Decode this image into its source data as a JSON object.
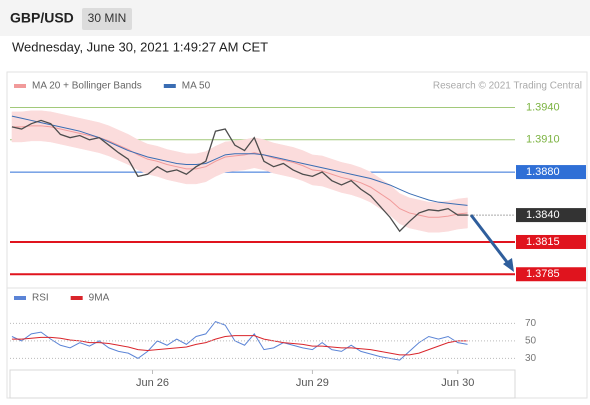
{
  "header": {
    "symbol": "GBP/USD",
    "timeframe": "30 MIN",
    "datetime": "Wednesday, June 30, 2021 1:49:27 AM CET"
  },
  "chart_data": [
    {
      "type": "line",
      "source": "Research © 2021 Trading Central",
      "x": [
        0,
        1,
        2,
        3,
        4,
        5,
        6,
        7,
        8,
        9,
        10,
        11,
        12,
        13,
        14,
        15,
        16,
        17,
        18,
        19,
        20,
        21,
        22,
        23,
        24,
        25,
        26,
        27,
        28,
        29,
        30,
        31,
        32,
        33,
        34,
        35,
        36,
        37,
        38,
        39,
        40,
        41,
        42,
        43,
        44,
        45,
        46,
        47
      ],
      "xlim": [
        -0.2,
        51.9
      ],
      "ylim": [
        1.3775,
        1.3947
      ],
      "series": [
        {
          "name": "MA 20 + Bollinger Bands",
          "color": "#f19a9a",
          "band_color": "#fbdcdc",
          "values": [
            1.3922,
            1.3922,
            1.3923,
            1.3923,
            1.3922,
            1.392,
            1.3918,
            1.3916,
            1.3914,
            1.3912,
            1.3909,
            1.3905,
            1.3901,
            1.3896,
            1.3892,
            1.389,
            1.3887,
            1.3885,
            1.3883,
            1.3883,
            1.3885,
            1.389,
            1.3894,
            1.3895,
            1.3896,
            1.3898,
            1.3896,
            1.3893,
            1.3891,
            1.3889,
            1.3886,
            1.3882,
            1.3881,
            1.3878,
            1.3875,
            1.3873,
            1.387,
            1.3866,
            1.386,
            1.3854,
            1.3846,
            1.3842,
            1.384,
            1.3838,
            1.3838,
            1.3839,
            1.3841,
            1.3842
          ],
          "upper": [
            1.3936,
            1.3936,
            1.3937,
            1.3937,
            1.3936,
            1.3934,
            1.3932,
            1.393,
            1.3928,
            1.3926,
            1.3923,
            1.3919,
            1.3915,
            1.391,
            1.3906,
            1.3904,
            1.3901,
            1.3899,
            1.3897,
            1.3897,
            1.3899,
            1.3904,
            1.3908,
            1.3909,
            1.391,
            1.3912,
            1.391,
            1.3907,
            1.3905,
            1.3903,
            1.39,
            1.3896,
            1.3895,
            1.3892,
            1.3889,
            1.3887,
            1.3884,
            1.388,
            1.3874,
            1.3868,
            1.386,
            1.3856,
            1.3854,
            1.3852,
            1.3852,
            1.3853,
            1.3855,
            1.3856
          ],
          "lower": [
            1.3908,
            1.3908,
            1.3909,
            1.3909,
            1.3908,
            1.3906,
            1.3904,
            1.3902,
            1.39,
            1.3898,
            1.3895,
            1.3891,
            1.3887,
            1.3882,
            1.3878,
            1.3876,
            1.3873,
            1.3871,
            1.3869,
            1.3869,
            1.3871,
            1.3876,
            1.388,
            1.3881,
            1.3882,
            1.3884,
            1.3882,
            1.3879,
            1.3877,
            1.3875,
            1.3872,
            1.3868,
            1.3867,
            1.3864,
            1.3861,
            1.3859,
            1.3856,
            1.3852,
            1.3846,
            1.384,
            1.3832,
            1.3828,
            1.3826,
            1.3824,
            1.3824,
            1.3825,
            1.3827,
            1.3828
          ]
        },
        {
          "name": "MA 50",
          "color": "#3a6db3",
          "values": [
            1.3932,
            1.393,
            1.3928,
            1.3926,
            1.3924,
            1.3922,
            1.392,
            1.3918,
            1.3915,
            1.3912,
            1.3908,
            1.3904,
            1.39,
            1.3897,
            1.3894,
            1.3892,
            1.389,
            1.3888,
            1.3887,
            1.3887,
            1.3888,
            1.3892,
            1.3896,
            1.3897,
            1.3897,
            1.3897,
            1.3896,
            1.3894,
            1.3892,
            1.389,
            1.3888,
            1.3886,
            1.3884,
            1.3882,
            1.388,
            1.3878,
            1.3876,
            1.3874,
            1.3871,
            1.3868,
            1.3864,
            1.386,
            1.3857,
            1.3854,
            1.3852,
            1.3851,
            1.385,
            1.3849
          ]
        },
        {
          "color": "#4d4d4d",
          "values": [
            1.3922,
            1.392,
            1.3925,
            1.3928,
            1.3925,
            1.3915,
            1.3912,
            1.3914,
            1.391,
            1.3912,
            1.3905,
            1.3898,
            1.3892,
            1.3876,
            1.3878,
            1.3885,
            1.388,
            1.3882,
            1.3878,
            1.3885,
            1.389,
            1.3918,
            1.392,
            1.3905,
            1.39,
            1.3912,
            1.389,
            1.3885,
            1.3888,
            1.3882,
            1.3878,
            1.3876,
            1.388,
            1.3872,
            1.3868,
            1.3872,
            1.3864,
            1.3858,
            1.3848,
            1.3838,
            1.3825,
            1.3834,
            1.3842,
            1.3845,
            1.3844,
            1.3846,
            1.384,
            1.384
          ]
        }
      ],
      "levels": [
        {
          "value": 1.394,
          "label": "1.3940",
          "color": "#7cb342",
          "style": "text"
        },
        {
          "value": 1.391,
          "label": "1.3910",
          "color": "#7cb342",
          "style": "text"
        },
        {
          "value": 1.388,
          "label": "1.3880",
          "color": "#2f6fd6",
          "style": "box"
        },
        {
          "value": 1.384,
          "label": "1.3840",
          "color": "#333333",
          "style": "current"
        },
        {
          "value": 1.3815,
          "label": "1.3815",
          "color": "#e0141e",
          "style": "box"
        },
        {
          "value": 1.3785,
          "label": "1.3785",
          "color": "#e0141e",
          "style": "box"
        }
      ]
    },
    {
      "type": "line",
      "x": [
        0,
        1,
        2,
        3,
        4,
        5,
        6,
        7,
        8,
        9,
        10,
        11,
        12,
        13,
        14,
        15,
        16,
        17,
        18,
        19,
        20,
        21,
        22,
        23,
        24,
        25,
        26,
        27,
        28,
        29,
        30,
        31,
        32,
        33,
        34,
        35,
        36,
        37,
        38,
        39,
        40,
        41,
        42,
        43,
        44,
        45,
        46,
        47
      ],
      "xlim": [
        -0.2,
        51.9
      ],
      "ylim": [
        19,
        83
      ],
      "yticks": [
        70,
        50,
        30
      ],
      "xticks": [
        {
          "value": 14.5,
          "label": "Jun 26"
        },
        {
          "value": 31,
          "label": "Jun 29"
        },
        {
          "value": 46,
          "label": "Jun 30"
        }
      ],
      "series": [
        {
          "name": "RSI",
          "color": "#5b84d6",
          "values": [
            55,
            50,
            58,
            60,
            52,
            45,
            42,
            48,
            44,
            50,
            42,
            38,
            36,
            30,
            38,
            50,
            45,
            52,
            46,
            55,
            58,
            72,
            68,
            50,
            45,
            58,
            40,
            42,
            48,
            45,
            42,
            40,
            48,
            40,
            38,
            45,
            38,
            35,
            32,
            30,
            28,
            38,
            48,
            55,
            52,
            55,
            48,
            46
          ]
        },
        {
          "name": "9MA",
          "color": "#d9252b",
          "values": [
            52,
            52,
            53,
            54,
            54,
            53,
            51,
            50,
            48,
            48,
            47,
            45,
            43,
            40,
            39,
            40,
            41,
            42,
            43,
            46,
            48,
            52,
            55,
            56,
            56,
            56,
            52,
            50,
            48,
            47,
            46,
            44,
            44,
            43,
            42,
            42,
            41,
            40,
            38,
            36,
            34,
            34,
            36,
            40,
            44,
            48,
            50,
            50
          ]
        }
      ]
    }
  ]
}
